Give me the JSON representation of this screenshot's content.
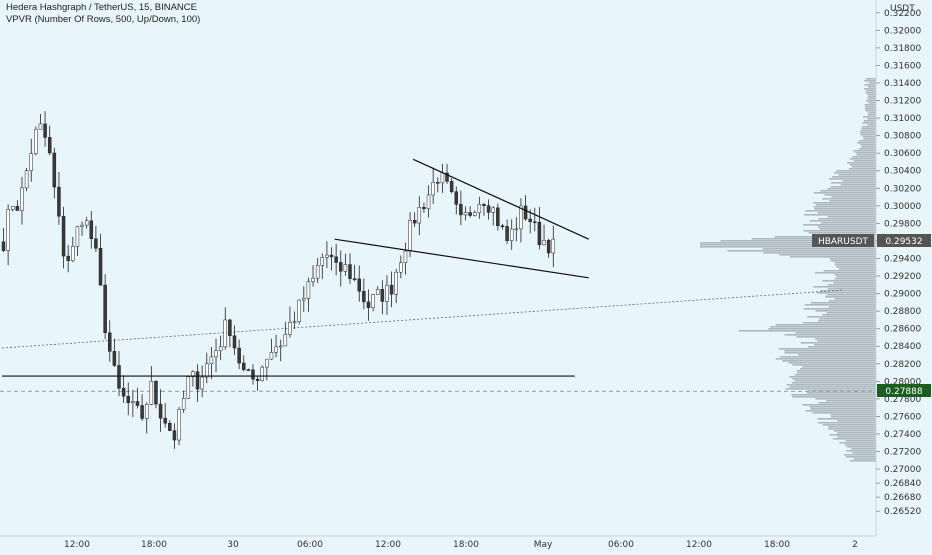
{
  "header": {
    "title": "Hedera Hashgraph / TetherUS, 15, BINANCE",
    "indicator": "VPVR (Number Of Rows, 500, Up/Down, 100)"
  },
  "price_axis": {
    "unit": "USDT",
    "current_symbol": "HBARUSDT",
    "current_price": "0.29532",
    "marked_price": "0.27888"
  },
  "colors": {
    "background": "#e8f5fb",
    "candle_up": "#ffffff",
    "candle_down": "#3a3a3a",
    "candle_wick": "#222222",
    "volume_profile": "#9aa3a9",
    "label_dark": "#555555",
    "label_green": "#1b5e20"
  },
  "chart_data": {
    "type": "candlestick",
    "title": "Hedera Hashgraph / TetherUS, 15, BINANCE",
    "ylim": [
      0.2642,
      0.323
    ],
    "y_ticks": [
      "0.32200",
      "0.32000",
      "0.31800",
      "0.31600",
      "0.31400",
      "0.31200",
      "0.31000",
      "0.30800",
      "0.30600",
      "0.30400",
      "0.30200",
      "0.30000",
      "0.29800",
      "0.29600",
      "0.29400",
      "0.29200",
      "0.29000",
      "0.28800",
      "0.28600",
      "0.28400",
      "0.28200",
      "0.28000",
      "0.27800",
      "0.27600",
      "0.27400",
      "0.27200",
      "0.27000",
      "0.26840",
      "0.26680",
      "0.26520"
    ],
    "x_ticks": [
      "12:00",
      "18:00",
      "30",
      "06:00",
      "12:00",
      "18:00",
      "May",
      "06:00",
      "12:00",
      "18:00",
      "2"
    ],
    "price_points": [
      0.296,
      0.3005,
      0.3,
      0.304,
      0.308,
      0.309,
      0.3055,
      0.299,
      0.2935,
      0.295,
      0.299,
      0.2975,
      0.294,
      0.287,
      0.282,
      0.2785,
      0.2775,
      0.2765,
      0.276,
      0.2795,
      0.277,
      0.2755,
      0.2735,
      0.277,
      0.2805,
      0.28,
      0.2815,
      0.283,
      0.2845,
      0.287,
      0.2835,
      0.281,
      0.28,
      0.281,
      0.283,
      0.284,
      0.2845,
      0.2865,
      0.288,
      0.29,
      0.2915,
      0.294,
      0.2945,
      0.2925,
      0.293,
      0.292,
      0.2905,
      0.2885,
      0.2895,
      0.29,
      0.2905,
      0.2935,
      0.296,
      0.2985,
      0.3,
      0.3015,
      0.3035,
      0.3025,
      0.3005,
      0.298,
      0.299,
      0.3005,
      0.301,
      0.3,
      0.298,
      0.296,
      0.2975,
      0.2995,
      0.2985,
      0.2965,
      0.296,
      0.2953
    ],
    "trend_lines": [
      {
        "name": "wedge-upper",
        "p1": {
          "bar": 89,
          "price": 0.3053
        },
        "p2": {
          "bar": 127,
          "price": 0.2962
        }
      },
      {
        "name": "wedge-lower",
        "p1": {
          "bar": 72,
          "price": 0.2962
        },
        "p2": {
          "bar": 127,
          "price": 0.2918
        }
      },
      {
        "name": "horizontal-level",
        "p1": {
          "bar": 0,
          "price": 0.2806
        },
        "p2": {
          "bar": 124,
          "price": 0.2806
        }
      }
    ],
    "dotted_trend": {
      "p1": {
        "bar": 0,
        "price": 0.2838
      },
      "p2": {
        "bar": 182,
        "price": 0.2904
      }
    },
    "dashed_level": 0.27888,
    "volume_profile_peak_price": 0.2955
  }
}
